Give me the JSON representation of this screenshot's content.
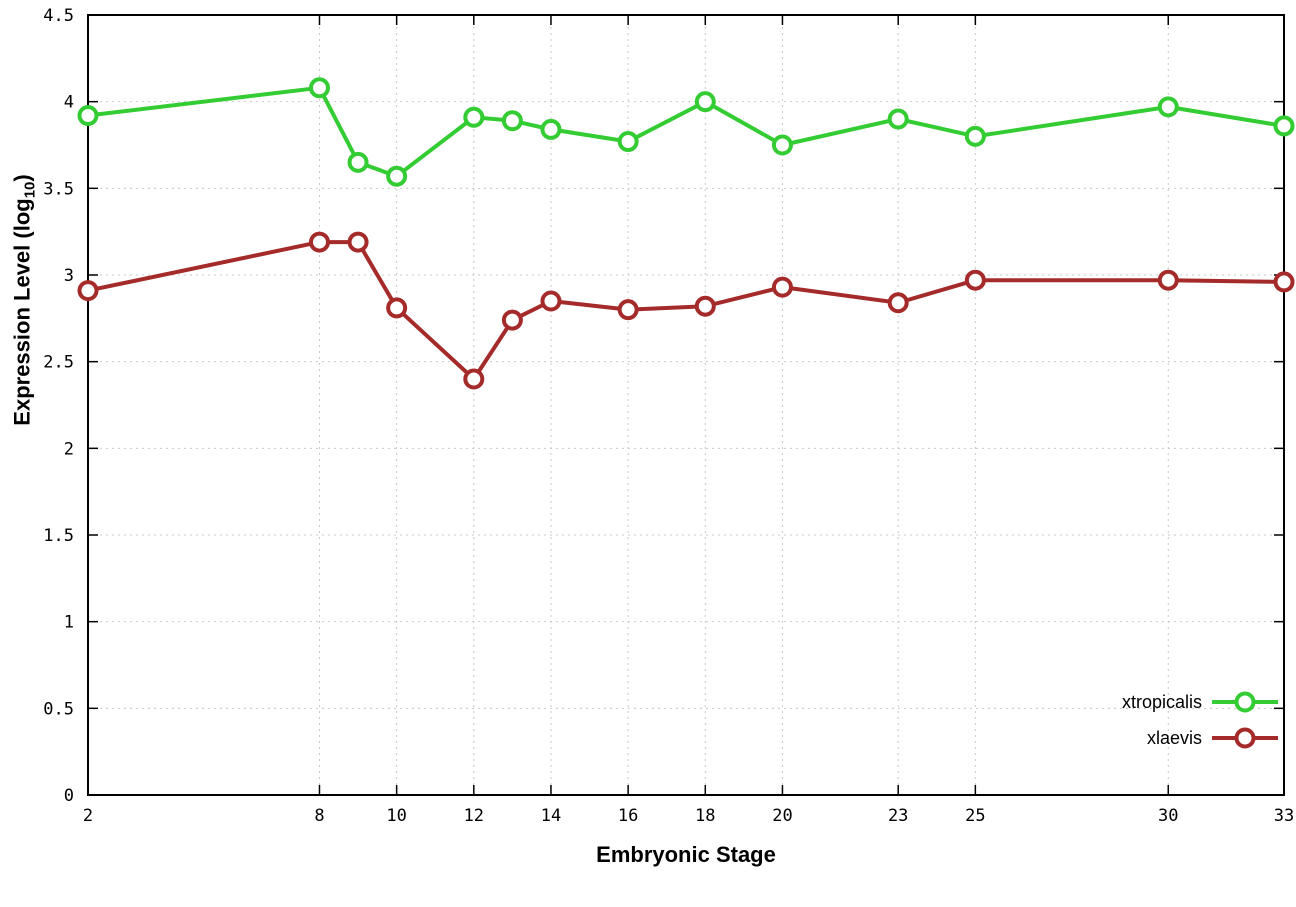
{
  "chart_data": {
    "type": "line",
    "title": "",
    "xlabel": "Embryonic Stage",
    "ylabel": "Expression Level (log10)",
    "ylabel_parts": {
      "prefix": "Expression Level (log",
      "sub": "10",
      "suffix": ")"
    },
    "x": [
      2,
      8,
      9,
      10,
      12,
      13,
      14,
      16,
      18,
      20,
      23,
      25,
      30,
      33
    ],
    "xticks": [
      2,
      8,
      10,
      12,
      14,
      16,
      18,
      20,
      23,
      25,
      30,
      33
    ],
    "xlim": [
      2,
      33
    ],
    "ylim": [
      0,
      4.5
    ],
    "ytick_step": 0.5,
    "grid": true,
    "legend_position": "bottom-right",
    "marker": "open-circle",
    "series": [
      {
        "name": "xtropicalis",
        "color": "#33cc33",
        "values": [
          3.92,
          4.08,
          3.65,
          3.57,
          3.91,
          3.89,
          3.84,
          3.77,
          4.0,
          3.75,
          3.9,
          3.8,
          3.97,
          3.86
        ]
      },
      {
        "name": "xlaevis",
        "color": "#a52a2a",
        "values": [
          2.91,
          3.19,
          3.19,
          2.81,
          2.4,
          2.74,
          2.85,
          2.8,
          2.82,
          2.93,
          2.84,
          2.97,
          2.97,
          2.96
        ]
      }
    ]
  }
}
